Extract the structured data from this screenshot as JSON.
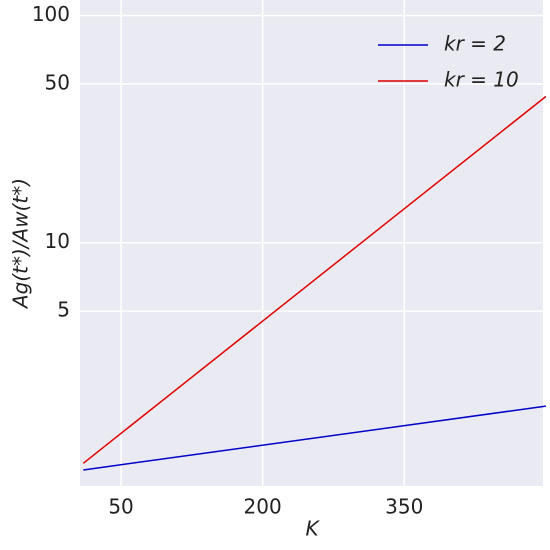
{
  "chart_data": {
    "type": "line",
    "x_label": "K",
    "y_label": "Ag(t*)/Aw(t*)",
    "x": [
      10,
      500
    ],
    "series": [
      {
        "name": "kr = 2",
        "color": "#0000c8",
        "values": [
          1.0,
          1.91
        ]
      },
      {
        "name": "kr = 10",
        "color": "#e00000",
        "values": [
          1.07,
          44
        ]
      }
    ],
    "xlim": [
      6.5,
      497
    ],
    "xticks": [
      50,
      200,
      350
    ],
    "ylim": [
      0.85,
      117
    ],
    "yticks": [
      5,
      10,
      50,
      100
    ],
    "log_y": true,
    "grid": true,
    "legend": "upper right"
  }
}
